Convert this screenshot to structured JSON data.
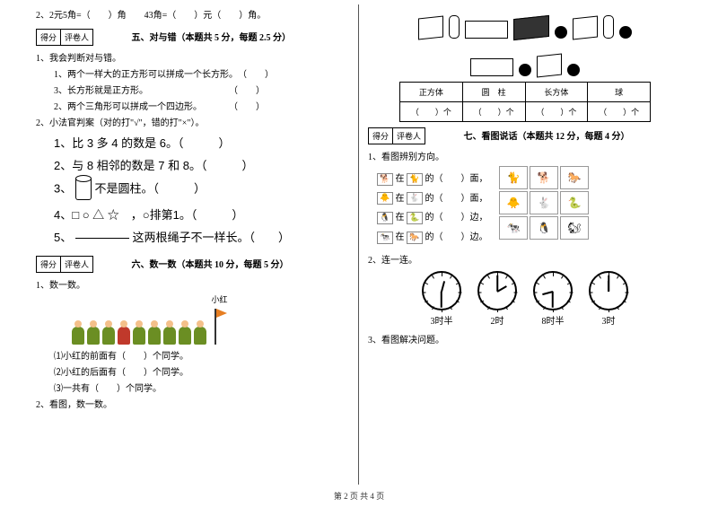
{
  "left": {
    "q2": "2、2元5角=（　　）角　　43角=（　　）元（　　）角。",
    "score": {
      "a": "得分",
      "b": "评卷人"
    },
    "sec5_title": "五、对与错（本题共 5 分，每题 2.5 分）",
    "s5_l1": "1、我会判断对与错。",
    "s5_l1a": "1、两个一样大的正方形可以拼成一个长方形。　（　　）",
    "s5_l1b": "3、长方形就是正方形。　　　　　　　　　　（　　）",
    "s5_l1c": "2、两个三角形可以拼成一个四边形。　　　　（　　）",
    "s5_l2": "2、小法官判案（对的打\"√\"，错的打\"×\"）。",
    "s5_b1": "1、比 3 多 4 的数是 6。（　　　）",
    "s5_b2": "2、与 8 相邻的数是 7 和 8。（　　　）",
    "s5_b3a": "3、",
    "s5_b3b": "不是圆柱。（　　　）",
    "s5_b4": "4、□ ○ △ ☆　，○排第1。（　　　）",
    "s5_b5a": "5、",
    "s5_b5b": "这两根绳子不一样长。（　　）",
    "sec6_title": "六、数一数（本题共 10 分，每题 5 分）",
    "s6_l1": "1、数一数。",
    "label_xh": "小红",
    "s6_q1": "⑴小红的前面有（　　）个同学。",
    "s6_q2": "⑵小红的后面有（　　）个同学。",
    "s6_q3": "⑶一共有（　　）个同学。",
    "s6_l2": "2、看图，数一数。"
  },
  "right": {
    "table": {
      "h1": "正方体",
      "h2": "圆　柱",
      "h3": "长方体",
      "h4": "球",
      "cell": "（　　）个"
    },
    "score": {
      "a": "得分",
      "b": "评卷人"
    },
    "sec7_title": "七、看图说话（本题共 12 分，每题 4 分）",
    "s7_l1": "1、看图辨别方向。",
    "d1a": "在",
    "d1b": "的（　　）面，",
    "d2a": "在",
    "d2b": "的（　　）面，",
    "d3a": "在",
    "d3b": "的（　　）边，",
    "d4a": "在",
    "d4b": "的（　　）边。",
    "s7_l2": "2、连一连。",
    "clocks": [
      {
        "label": "3时半",
        "h": 15,
        "m": 180
      },
      {
        "label": "2时",
        "h": 60,
        "m": 0
      },
      {
        "label": "8时半",
        "h": -105,
        "m": 180
      },
      {
        "label": "3时",
        "h": 0,
        "m": 0
      }
    ],
    "s7_l3": "3、看图解决问题。"
  },
  "footer": "第 2 页  共 4 页"
}
